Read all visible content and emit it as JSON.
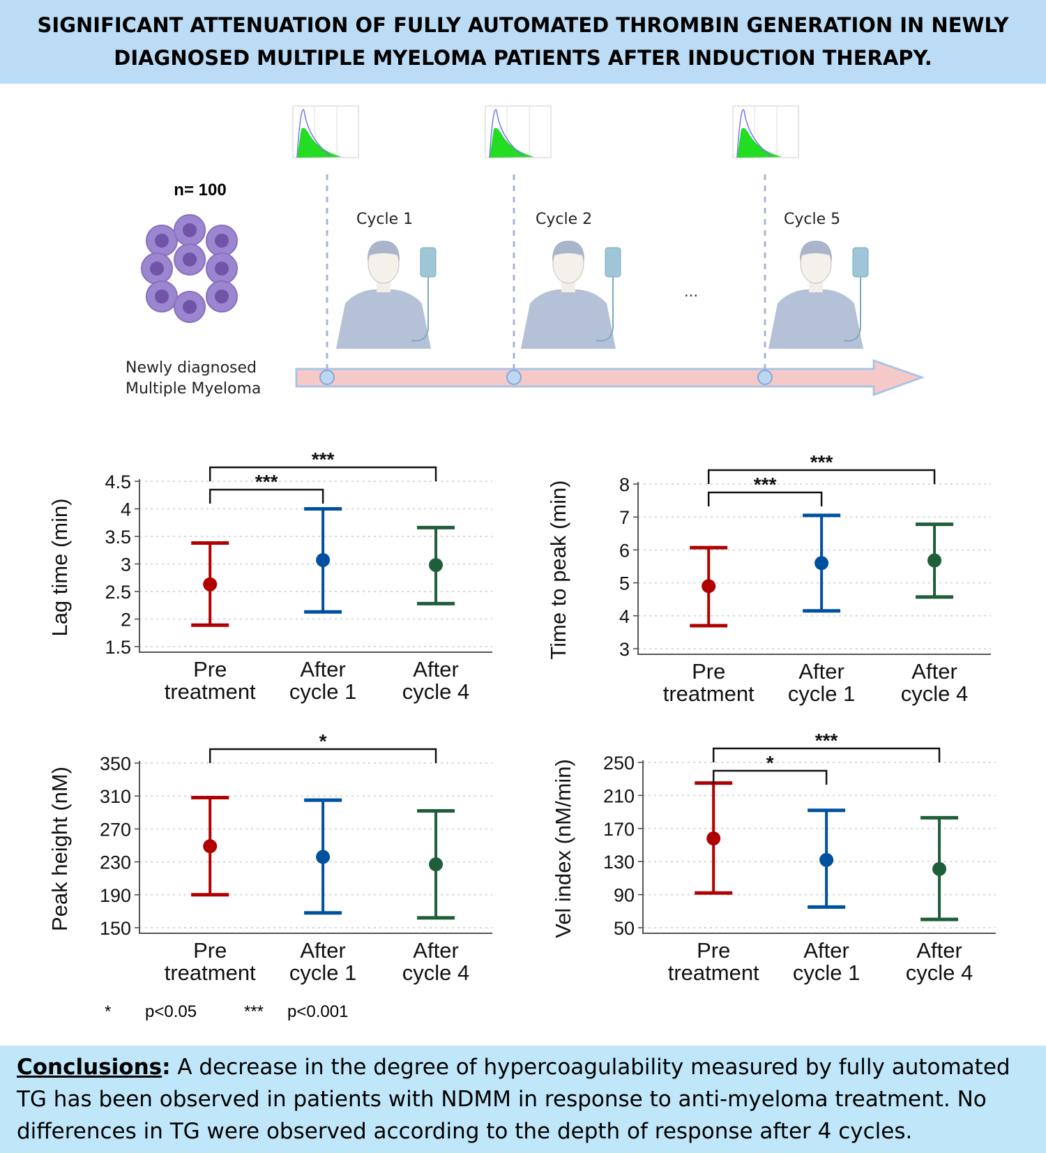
{
  "header": {
    "title": "SIGNIFICANT ATTENUATION OF FULLY AUTOMATED THROMBIN GENERATION IN NEWLY DIAGNOSED MULTIPLE MYELOMA PATIENTS AFTER INDUCTION THERAPY."
  },
  "illustration": {
    "n_label": "n= 100",
    "disease_line1": "Newly diagnosed",
    "disease_line2": "Multiple Myeloma",
    "cycles": [
      "Cycle 1",
      "Cycle 2",
      "Cycle 5"
    ],
    "ellipsis": "...",
    "colors": {
      "arrow": "#f6c9c9",
      "arrow_stroke": "#a9c4e6",
      "cells": "#8a6fc0",
      "curve_fill": "#22dd22"
    }
  },
  "chart_data": [
    {
      "type": "errorbar",
      "ylabel": "Lag time (min)",
      "categories": [
        "Pre\ntreatment",
        "After\ncycle 1",
        "After\ncycle 4"
      ],
      "yticks": [
        "4.5",
        "4",
        "3.5",
        "3",
        "2.5",
        "2",
        "1.5"
      ],
      "ylim": [
        1.5,
        4.5
      ],
      "grid": true,
      "means": [
        2.63,
        3.07,
        2.98
      ],
      "lower": [
        1.89,
        2.13,
        2.28
      ],
      "upper": [
        3.38,
        4.0,
        3.66
      ],
      "comparisons": [
        {
          "from": 0,
          "to": 1,
          "label": "***"
        },
        {
          "from": 0,
          "to": 2,
          "label": "***"
        }
      ]
    },
    {
      "type": "errorbar",
      "ylabel": "Time to peak (min)",
      "categories": [
        "Pre\ntreatment",
        "After\ncycle 1",
        "After\ncycle 4"
      ],
      "yticks": [
        "8",
        "7",
        "6",
        "5",
        "4",
        "3"
      ],
      "ylim": [
        3,
        8
      ],
      "grid": true,
      "means": [
        4.9,
        5.6,
        5.68
      ],
      "lower": [
        3.7,
        4.15,
        4.57
      ],
      "upper": [
        6.07,
        7.05,
        6.78
      ],
      "comparisons": [
        {
          "from": 0,
          "to": 1,
          "label": "***"
        },
        {
          "from": 0,
          "to": 2,
          "label": "***"
        }
      ]
    },
    {
      "type": "errorbar",
      "ylabel": "Peak height (nM)",
      "categories": [
        "Pre\ntreatment",
        "After\ncycle 1",
        "After\ncycle 4"
      ],
      "yticks": [
        "350",
        "310",
        "270",
        "230",
        "190",
        "150"
      ],
      "ylim": [
        150,
        350
      ],
      "grid": true,
      "means": [
        249,
        236,
        227
      ],
      "lower": [
        190,
        168,
        162
      ],
      "upper": [
        308,
        305,
        292
      ],
      "comparisons": [
        {
          "from": 0,
          "to": 2,
          "label": "*"
        }
      ]
    },
    {
      "type": "errorbar",
      "ylabel": "Vel index (nM/min)",
      "categories": [
        "Pre\ntreatment",
        "After\ncycle 1",
        "After\ncycle 4"
      ],
      "yticks": [
        "250",
        "210",
        "170",
        "130",
        "90",
        "50"
      ],
      "ylim": [
        50,
        250
      ],
      "grid": true,
      "means": [
        158,
        132,
        121
      ],
      "lower": [
        92,
        75,
        60
      ],
      "upper": [
        225,
        192,
        183
      ],
      "comparisons": [
        {
          "from": 0,
          "to": 1,
          "label": "*"
        },
        {
          "from": 0,
          "to": 2,
          "label": "***"
        }
      ]
    }
  ],
  "series_colors": [
    "#b00000",
    "#0050a0",
    "#1e5e38"
  ],
  "legend": {
    "star1": "*",
    "star1_text": "p<0.05",
    "star3": "***",
    "star3_text": "p<0.001"
  },
  "conclusions": {
    "label": "Conclusions",
    "text": " A decrease in the degree of hypercoagulability measured by fully automated TG has been observed in patients with NDMM in response to anti-myeloma treatment. No differences in TG were observed according to the depth of response after 4 cycles."
  }
}
